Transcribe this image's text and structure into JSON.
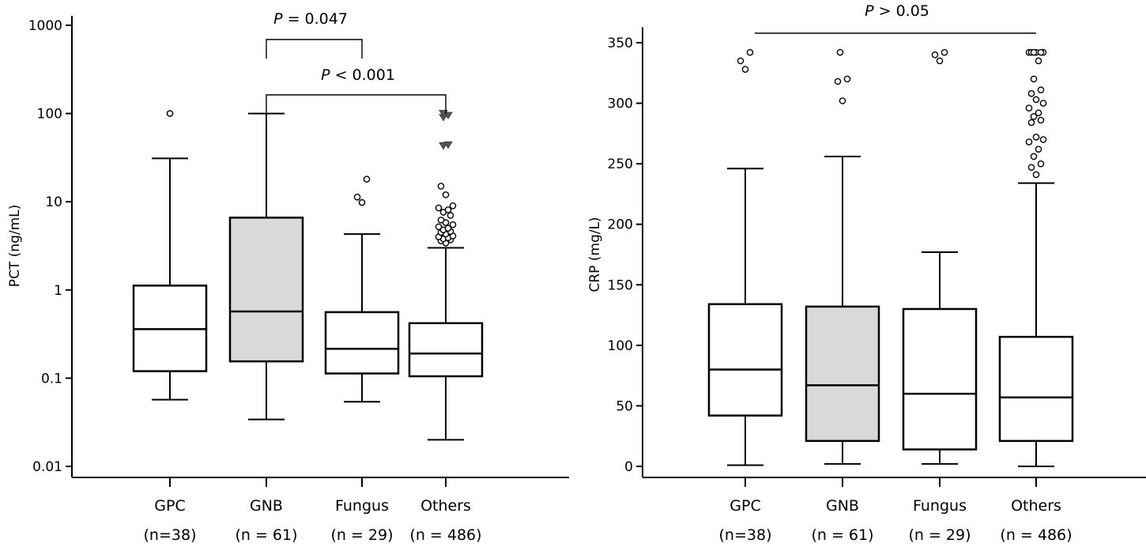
{
  "chart_data": [
    {
      "type": "box",
      "panel": "left",
      "ylabel": "PCT (ng/mL)",
      "yscale": "log",
      "ylim": [
        0.01,
        1000
      ],
      "yticks": [
        0.01,
        0.1,
        1,
        10,
        100,
        1000
      ],
      "ytick_labels": [
        "0.01",
        "0.1",
        "1",
        "10",
        "100",
        "1000"
      ],
      "categories": [
        "GPC",
        "GNB",
        "Fungus",
        "Others"
      ],
      "group_sizes": [
        "(n=38)",
        "(n = 61)",
        "(n = 29)",
        "(n = 486)"
      ],
      "highlight_category": "GNB",
      "highlight_color": "#d9d9d9",
      "boxes": [
        {
          "min": 0.057,
          "q1": 0.12,
          "median": 0.36,
          "q3": 1.12,
          "max": 31,
          "outliers": [
            100
          ]
        },
        {
          "min": 0.034,
          "q1": 0.155,
          "median": 0.57,
          "q3": 6.6,
          "max": 100,
          "outliers": []
        },
        {
          "min": 0.054,
          "q1": 0.113,
          "median": 0.215,
          "q3": 0.56,
          "max": 4.3,
          "outliers": [
            9.8,
            11.3,
            18
          ]
        },
        {
          "min": 0.02,
          "q1": 0.105,
          "median": 0.19,
          "q3": 0.42,
          "max": 3.0,
          "outliers": [
            3.4,
            3.6,
            3.7,
            3.8,
            3.9,
            4.0,
            4.1,
            4.3,
            4.5,
            4.6,
            4.8,
            5.0,
            5.2,
            5.5,
            5.8,
            6.2,
            7.0,
            7.6,
            8.1,
            8.5,
            9.0,
            12,
            15
          ]
        },
        {
          "outlier_markers_triangle": [
            43,
            44,
            90,
            95,
            100
          ]
        }
      ],
      "annotations": [
        {
          "text": "= 0.047",
          "italic_prefix": "P",
          "from": "GNB",
          "to": "Fungus"
        },
        {
          "text": "< 0.001",
          "italic_prefix": "P",
          "from": "GNB",
          "to": "Others"
        }
      ]
    },
    {
      "type": "box",
      "panel": "right",
      "ylabel": "CRP (mg/L)",
      "yscale": "linear",
      "ylim": [
        -10,
        355
      ],
      "yticks": [
        0,
        50,
        100,
        150,
        200,
        250,
        300,
        350
      ],
      "ytick_labels": [
        "0",
        "50",
        "100",
        "150",
        "200",
        "250",
        "300",
        "350"
      ],
      "categories": [
        "GPC",
        "GNB",
        "Fungus",
        "Others"
      ],
      "group_sizes": [
        "(n=38)",
        "(n = 61)",
        "(n = 29)",
        "(n = 486)"
      ],
      "highlight_category": "GNB",
      "highlight_color": "#d9d9d9",
      "boxes": [
        {
          "min": 1,
          "q1": 42,
          "median": 80,
          "q3": 134,
          "max": 246,
          "outliers": [
            328,
            335,
            342
          ]
        },
        {
          "min": 2,
          "q1": 21,
          "median": 67,
          "q3": 132,
          "max": 256,
          "outliers": [
            302,
            318,
            320,
            342
          ]
        },
        {
          "min": 2,
          "q1": 14,
          "median": 60,
          "q3": 130,
          "max": 177,
          "outliers": [
            335,
            340,
            342
          ]
        },
        {
          "min": 0,
          "q1": 21,
          "median": 57,
          "q3": 107,
          "max": 234,
          "outliers": [
            241,
            247,
            250,
            256,
            262,
            268,
            270,
            272,
            284,
            286,
            289,
            292,
            296,
            300,
            303,
            308,
            311,
            320,
            335,
            342,
            342,
            342,
            342,
            342,
            342
          ]
        }
      ],
      "annotations": [
        {
          "text": "> 0.05",
          "italic_prefix": "P",
          "from": "GPC",
          "to": "Others"
        }
      ]
    }
  ]
}
